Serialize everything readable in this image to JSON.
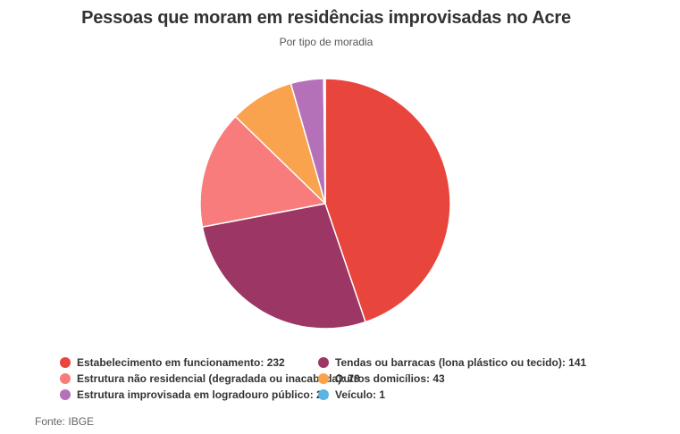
{
  "chart_data": {
    "type": "pie",
    "title": "Pessoas que moram em residências improvisadas no Acre",
    "subtitle": "Por tipo de moradia",
    "legend_position": "bottom",
    "slices": [
      {
        "label": "Estabelecimento em funcionamento",
        "value": 232,
        "color": "#e8453c"
      },
      {
        "label": "Tendas ou barracas (lona plástico ou tecido)",
        "value": 141,
        "color": "#9c3664"
      },
      {
        "label": "Estrutura não residencial (degradada ou inacabada)",
        "value": 79,
        "color": "#f87c7c"
      },
      {
        "label": "Outros domicílios",
        "value": 43,
        "color": "#f9a34e"
      },
      {
        "label": "Estrutura improvisada em logradouro público",
        "value": 22,
        "color": "#b571b8"
      },
      {
        "label": "Veículo",
        "value": 1,
        "color": "#5bb5e0"
      }
    ],
    "legend_entries": [
      "Estabelecimento em funcionamento: 232",
      "Tendas ou barracas (lona plástico ou tecido): 141",
      "Estrutura não residencial (degradada ou inacabada): 79",
      "Outros domicílios: 43",
      "Estrutura improvisada em logradouro público: 22",
      "Veículo: 1"
    ]
  },
  "source": "Fonte: IBGE"
}
